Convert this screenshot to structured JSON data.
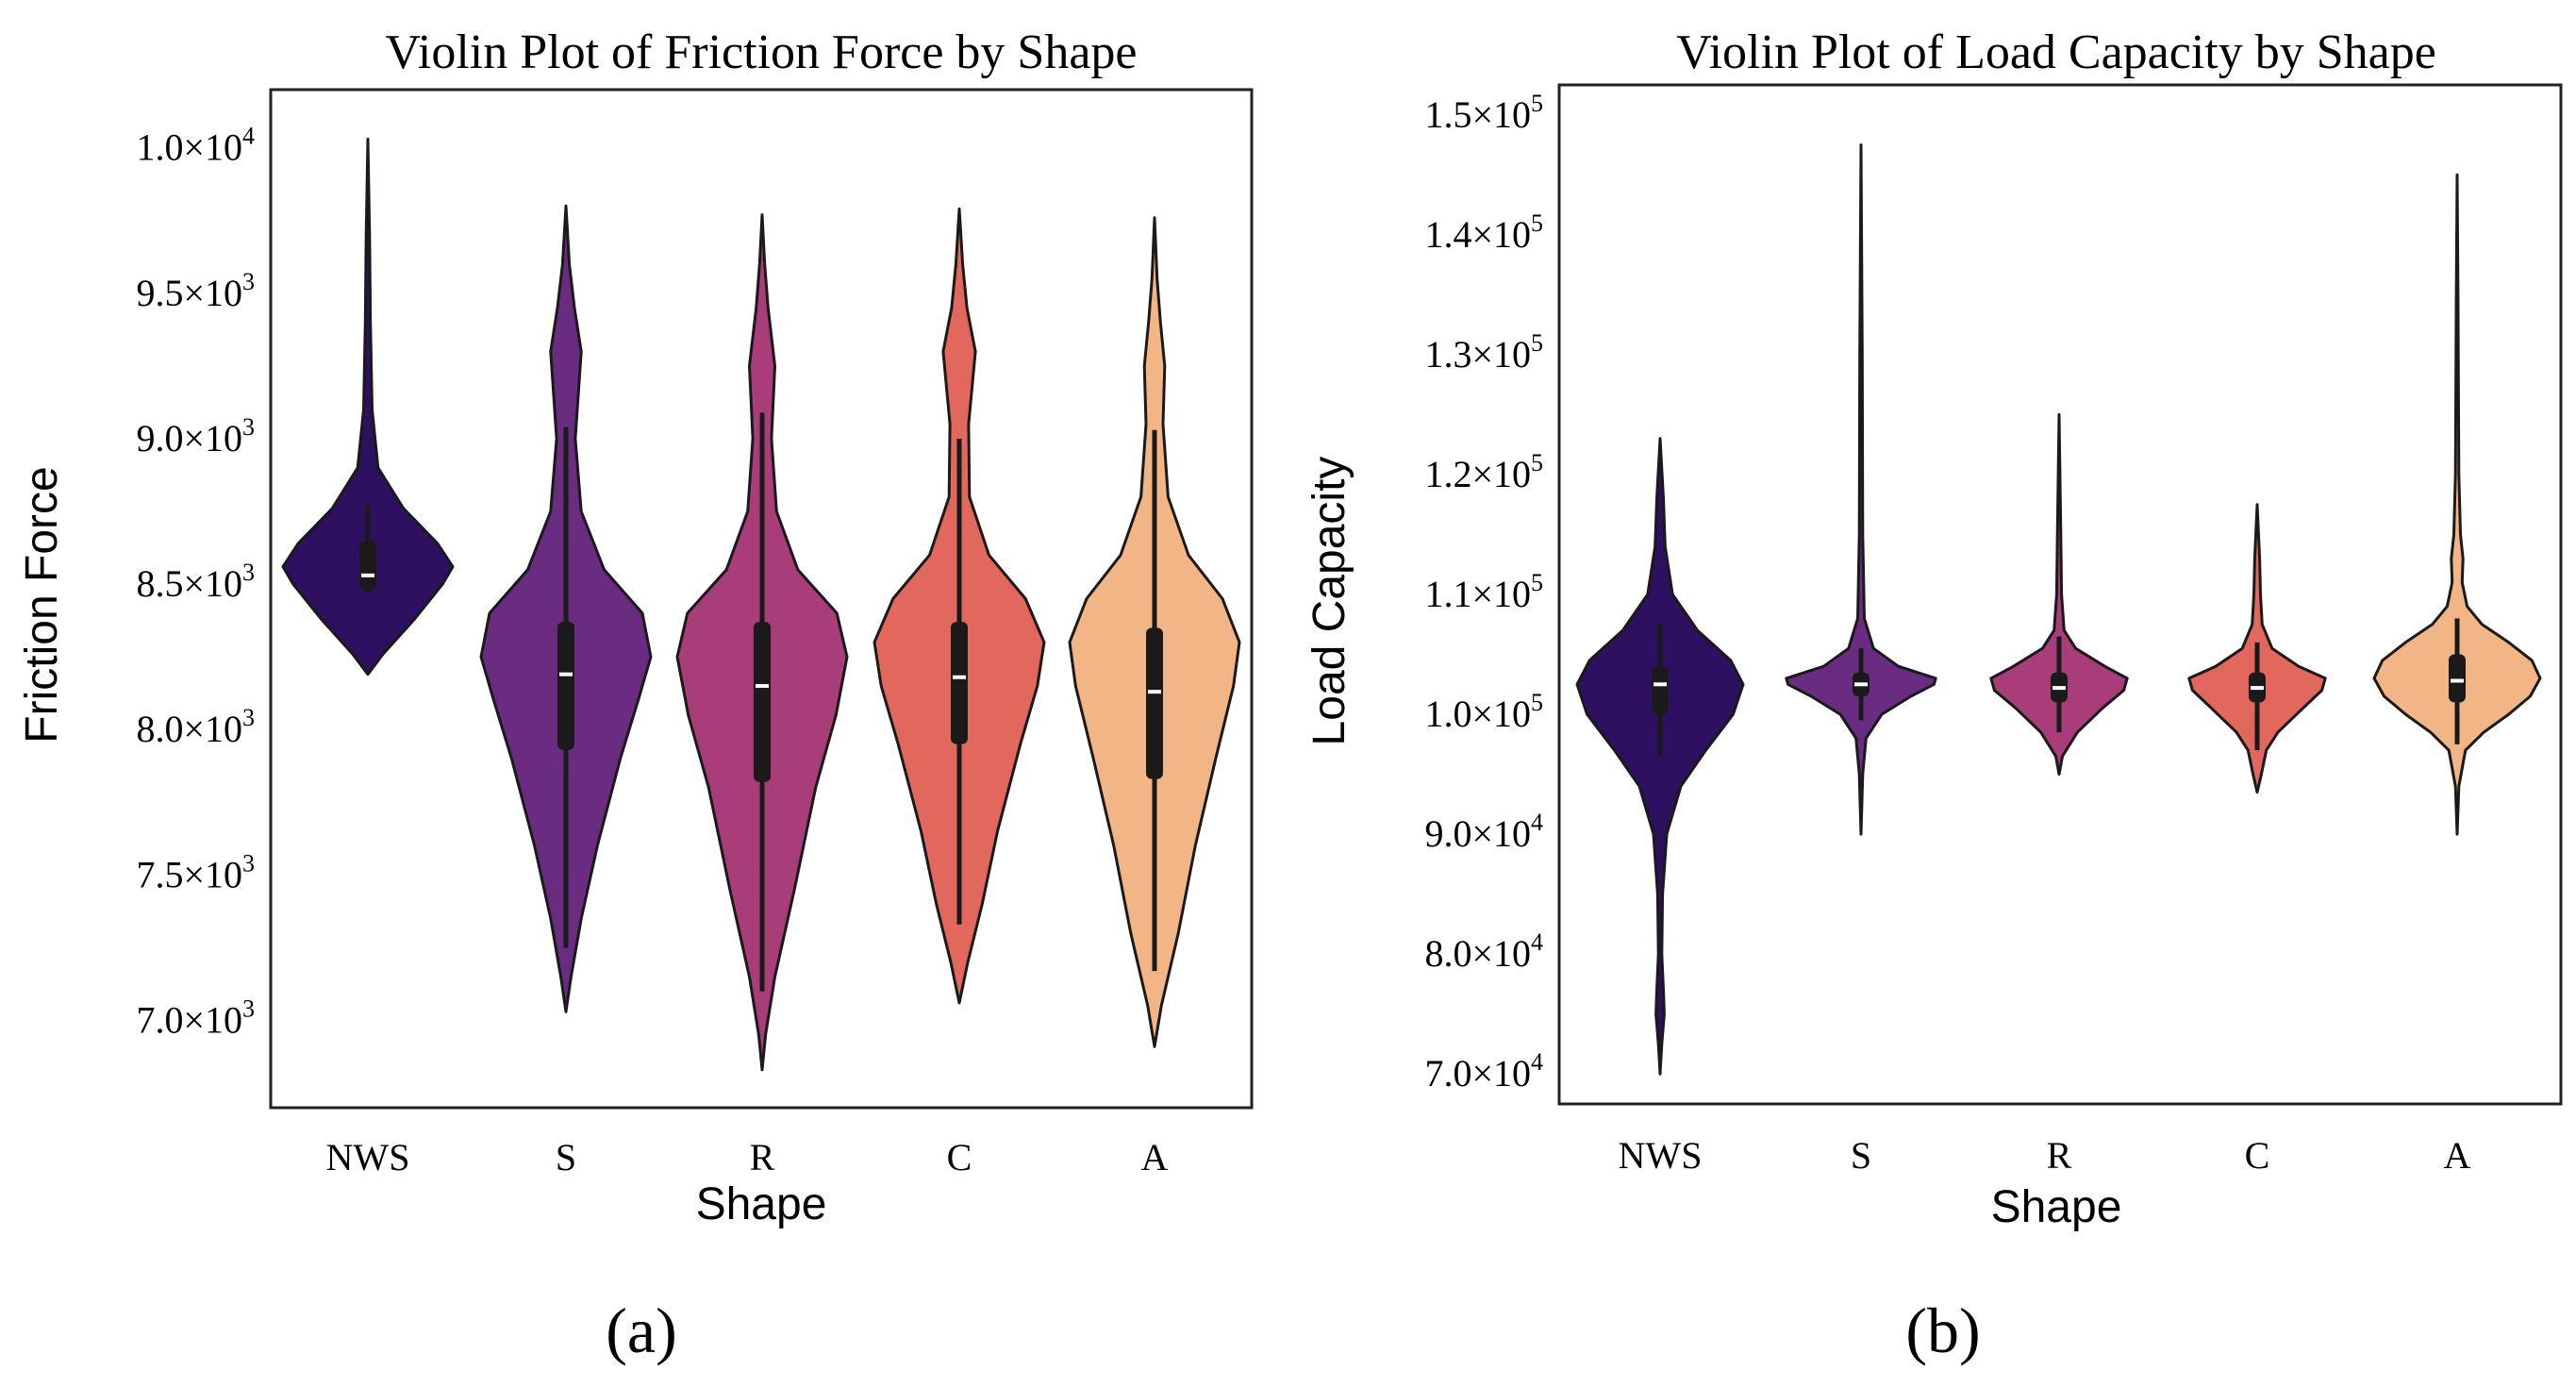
{
  "figure": {
    "labels": [
      "(a)",
      "(b)"
    ]
  },
  "chart_data": [
    {
      "type": "violin",
      "title": "Violin Plot of Friction Force by Shape",
      "xlabel": "Shape",
      "ylabel": "Friction Force",
      "ylim": [
        6700,
        10200
      ],
      "ticks": [
        {
          "value": 7000,
          "mant": "7.0",
          "exp": "3"
        },
        {
          "value": 7500,
          "mant": "7.5",
          "exp": "3"
        },
        {
          "value": 8000,
          "mant": "8.0",
          "exp": "3"
        },
        {
          "value": 8500,
          "mant": "8.5",
          "exp": "3"
        },
        {
          "value": 9000,
          "mant": "9.0",
          "exp": "3"
        },
        {
          "value": 9500,
          "mant": "9.5",
          "exp": "3"
        },
        {
          "value": 10000,
          "mant": "1.0",
          "exp": "4"
        }
      ],
      "categories": [
        "NWS",
        "S",
        "R",
        "C",
        "A"
      ],
      "series": [
        {
          "name": "NWS",
          "color": "#2d1160",
          "min": 8190,
          "max": 10030,
          "q1": 8480,
          "median": 8530,
          "q3": 8650,
          "whisker_low": 8470,
          "whisker_high": 8770,
          "profile": [
            [
              8190,
              0.0
            ],
            [
              8260,
              0.18
            ],
            [
              8380,
              0.55
            ],
            [
              8500,
              0.88
            ],
            [
              8560,
              1.0
            ],
            [
              8640,
              0.82
            ],
            [
              8760,
              0.42
            ],
            [
              8900,
              0.12
            ],
            [
              9100,
              0.05
            ],
            [
              9400,
              0.03
            ],
            [
              9700,
              0.02
            ],
            [
              10030,
              0.0
            ]
          ]
        },
        {
          "name": "S",
          "color": "#6a2c81",
          "min": 7030,
          "max": 9800,
          "q1": 7930,
          "median": 8190,
          "q3": 8370,
          "whisker_low": 7250,
          "whisker_high": 9040,
          "profile": [
            [
              7030,
              0.0
            ],
            [
              7150,
              0.06
            ],
            [
              7350,
              0.18
            ],
            [
              7600,
              0.37
            ],
            [
              7900,
              0.64
            ],
            [
              8100,
              0.85
            ],
            [
              8250,
              1.0
            ],
            [
              8400,
              0.9
            ],
            [
              8550,
              0.45
            ],
            [
              8750,
              0.18
            ],
            [
              9000,
              0.11
            ],
            [
              9300,
              0.18
            ],
            [
              9450,
              0.1
            ],
            [
              9600,
              0.04
            ],
            [
              9800,
              0.0
            ]
          ]
        },
        {
          "name": "R",
          "color": "#a83d79",
          "min": 6830,
          "max": 9770,
          "q1": 7820,
          "median": 8150,
          "q3": 8370,
          "whisker_low": 7100,
          "whisker_high": 9090,
          "profile": [
            [
              6830,
              0.0
            ],
            [
              6950,
              0.04
            ],
            [
              7150,
              0.15
            ],
            [
              7450,
              0.38
            ],
            [
              7800,
              0.63
            ],
            [
              8050,
              0.87
            ],
            [
              8250,
              1.0
            ],
            [
              8400,
              0.88
            ],
            [
              8550,
              0.42
            ],
            [
              8750,
              0.17
            ],
            [
              9000,
              0.11
            ],
            [
              9250,
              0.15
            ],
            [
              9450,
              0.07
            ],
            [
              9600,
              0.03
            ],
            [
              9770,
              0.0
            ]
          ]
        },
        {
          "name": "C",
          "color": "#e2675d",
          "min": 7060,
          "max": 9790,
          "q1": 7950,
          "median": 8180,
          "q3": 8370,
          "whisker_low": 7330,
          "whisker_high": 9000,
          "profile": [
            [
              7060,
              0.0
            ],
            [
              7200,
              0.1
            ],
            [
              7400,
              0.27
            ],
            [
              7650,
              0.45
            ],
            [
              7950,
              0.72
            ],
            [
              8150,
              0.92
            ],
            [
              8300,
              1.0
            ],
            [
              8450,
              0.78
            ],
            [
              8600,
              0.35
            ],
            [
              8800,
              0.12
            ],
            [
              9050,
              0.11
            ],
            [
              9300,
              0.19
            ],
            [
              9450,
              0.09
            ],
            [
              9600,
              0.04
            ],
            [
              9790,
              0.0
            ]
          ]
        },
        {
          "name": "A",
          "color": "#f2b585",
          "min": 6910,
          "max": 9760,
          "q1": 7830,
          "median": 8130,
          "q3": 8350,
          "whisker_low": 7170,
          "whisker_high": 9030,
          "profile": [
            [
              6910,
              0.0
            ],
            [
              7050,
              0.08
            ],
            [
              7300,
              0.28
            ],
            [
              7600,
              0.48
            ],
            [
              7900,
              0.72
            ],
            [
              8150,
              0.93
            ],
            [
              8300,
              1.0
            ],
            [
              8450,
              0.8
            ],
            [
              8600,
              0.4
            ],
            [
              8800,
              0.16
            ],
            [
              9050,
              0.1
            ],
            [
              9250,
              0.12
            ],
            [
              9400,
              0.07
            ],
            [
              9550,
              0.03
            ],
            [
              9760,
              0.0
            ]
          ]
        }
      ]
    },
    {
      "type": "violin",
      "title": "Violin Plot of Load Capacity by Shape",
      "xlabel": "Shape",
      "ylabel": "Load Capacity",
      "ylim": [
        67500,
        152500
      ],
      "ticks": [
        {
          "value": 70000,
          "mant": "7.0",
          "exp": "4"
        },
        {
          "value": 80000,
          "mant": "8.0",
          "exp": "4"
        },
        {
          "value": 90000,
          "mant": "9.0",
          "exp": "4"
        },
        {
          "value": 100000,
          "mant": "1.0",
          "exp": "5"
        },
        {
          "value": 110000,
          "mant": "1.1",
          "exp": "5"
        },
        {
          "value": 120000,
          "mant": "1.2",
          "exp": "5"
        },
        {
          "value": 130000,
          "mant": "1.3",
          "exp": "5"
        },
        {
          "value": 140000,
          "mant": "1.4",
          "exp": "5"
        },
        {
          "value": 150000,
          "mant": "1.5",
          "exp": "5"
        }
      ],
      "categories": [
        "NWS",
        "S",
        "R",
        "C",
        "A"
      ],
      "series": [
        {
          "name": "NWS",
          "color": "#2d1160",
          "min": 70000,
          "max": 123000,
          "q1": 100000,
          "median": 102500,
          "q3": 104000,
          "whisker_low": 96500,
          "whisker_high": 107500,
          "profile": [
            [
              70000,
              0.0
            ],
            [
              72500,
              0.02
            ],
            [
              75000,
              0.05
            ],
            [
              77000,
              0.04
            ],
            [
              80000,
              0.02
            ],
            [
              85000,
              0.03
            ],
            [
              90000,
              0.08
            ],
            [
              94000,
              0.25
            ],
            [
              97000,
              0.55
            ],
            [
              100000,
              0.88
            ],
            [
              102500,
              1.0
            ],
            [
              104500,
              0.85
            ],
            [
              107000,
              0.45
            ],
            [
              110000,
              0.15
            ],
            [
              114000,
              0.06
            ],
            [
              118000,
              0.04
            ],
            [
              123000,
              0.0
            ]
          ]
        },
        {
          "name": "S",
          "color": "#6a2c81",
          "min": 90000,
          "max": 147500,
          "q1": 101500,
          "median": 102500,
          "q3": 103500,
          "whisker_low": 99500,
          "whisker_high": 105500,
          "profile": [
            [
              90000,
              0.0
            ],
            [
              95000,
              0.02
            ],
            [
              98000,
              0.06
            ],
            [
              100000,
              0.25
            ],
            [
              101500,
              0.6
            ],
            [
              102500,
              0.88
            ],
            [
              103000,
              0.9
            ],
            [
              104000,
              0.45
            ],
            [
              105500,
              0.15
            ],
            [
              108000,
              0.04
            ],
            [
              115000,
              0.02
            ],
            [
              130000,
              0.015
            ],
            [
              147500,
              0.0
            ]
          ]
        },
        {
          "name": "R",
          "color": "#a83d79",
          "min": 95000,
          "max": 125000,
          "q1": 101000,
          "median": 102200,
          "q3": 103500,
          "whisker_low": 98500,
          "whisker_high": 106500,
          "profile": [
            [
              95000,
              0.0
            ],
            [
              96500,
              0.04
            ],
            [
              98500,
              0.22
            ],
            [
              100500,
              0.52
            ],
            [
              102000,
              0.78
            ],
            [
              103000,
              0.82
            ],
            [
              104000,
              0.55
            ],
            [
              105500,
              0.2
            ],
            [
              107000,
              0.06
            ],
            [
              110000,
              0.03
            ],
            [
              115000,
              0.02
            ],
            [
              125000,
              0.0
            ]
          ]
        },
        {
          "name": "C",
          "color": "#e2675d",
          "min": 93500,
          "max": 117500,
          "q1": 101000,
          "median": 102200,
          "q3": 103500,
          "whisker_low": 97000,
          "whisker_high": 106000,
          "profile": [
            [
              93500,
              0.0
            ],
            [
              95000,
              0.05
            ],
            [
              97000,
              0.11
            ],
            [
              98500,
              0.25
            ],
            [
              100500,
              0.55
            ],
            [
              102000,
              0.78
            ],
            [
              103000,
              0.82
            ],
            [
              104000,
              0.5
            ],
            [
              105500,
              0.18
            ],
            [
              107500,
              0.06
            ],
            [
              110000,
              0.04
            ],
            [
              113000,
              0.03
            ],
            [
              117500,
              0.0
            ]
          ]
        },
        {
          "name": "A",
          "color": "#f2b585",
          "min": 90000,
          "max": 145000,
          "q1": 101000,
          "median": 102800,
          "q3": 105000,
          "whisker_low": 97500,
          "whisker_high": 108000,
          "profile": [
            [
              90000,
              0.0
            ],
            [
              94000,
              0.02
            ],
            [
              97000,
              0.1
            ],
            [
              98500,
              0.32
            ],
            [
              100000,
              0.62
            ],
            [
              101500,
              0.88
            ],
            [
              103000,
              1.0
            ],
            [
              104500,
              0.9
            ],
            [
              106000,
              0.62
            ],
            [
              107500,
              0.3
            ],
            [
              109000,
              0.12
            ],
            [
              111000,
              0.06
            ],
            [
              113000,
              0.07
            ],
            [
              115000,
              0.04
            ],
            [
              120000,
              0.02
            ],
            [
              135000,
              0.01
            ],
            [
              145000,
              0.0
            ]
          ]
        }
      ]
    }
  ]
}
